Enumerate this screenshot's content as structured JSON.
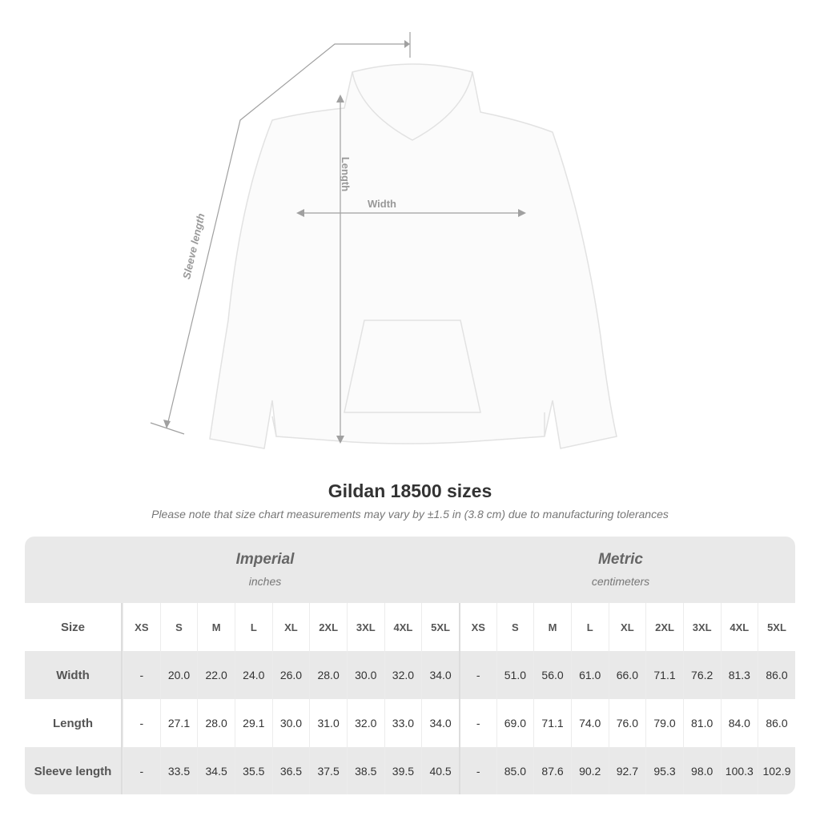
{
  "diagram": {
    "labels": {
      "sleeve": "Sleeve length",
      "length": "Length",
      "width": "Width"
    },
    "garment_color": "#fbfbfb",
    "line_color": "#a0a0a0"
  },
  "title": "Gildan 18500 sizes",
  "note": "Please note that size chart measurements may vary by ±1.5 in (3.8 cm) due to manufacturing tolerances",
  "table": {
    "imperial": {
      "heading": "Imperial",
      "unit": "inches"
    },
    "metric": {
      "heading": "Metric",
      "unit": "centimeters"
    },
    "size_label": "Size",
    "sizes": [
      "XS",
      "S",
      "M",
      "L",
      "XL",
      "2XL",
      "3XL",
      "4XL",
      "5XL"
    ],
    "rows": [
      {
        "label": "Width",
        "imperial": [
          "-",
          "20.0",
          "22.0",
          "24.0",
          "26.0",
          "28.0",
          "30.0",
          "32.0",
          "34.0"
        ],
        "metric": [
          "-",
          "51.0",
          "56.0",
          "61.0",
          "66.0",
          "71.1",
          "76.2",
          "81.3",
          "86.0"
        ]
      },
      {
        "label": "Length",
        "imperial": [
          "-",
          "27.1",
          "28.0",
          "29.1",
          "30.0",
          "31.0",
          "32.0",
          "33.0",
          "34.0"
        ],
        "metric": [
          "-",
          "69.0",
          "71.1",
          "74.0",
          "76.0",
          "79.0",
          "81.0",
          "84.0",
          "86.0"
        ]
      },
      {
        "label": "Sleeve length",
        "imperial": [
          "-",
          "33.5",
          "34.5",
          "35.5",
          "36.5",
          "37.5",
          "38.5",
          "39.5",
          "40.5"
        ],
        "metric": [
          "-",
          "85.0",
          "87.6",
          "90.2",
          "92.7",
          "95.3",
          "98.0",
          "100.3",
          "102.9"
        ]
      }
    ]
  }
}
